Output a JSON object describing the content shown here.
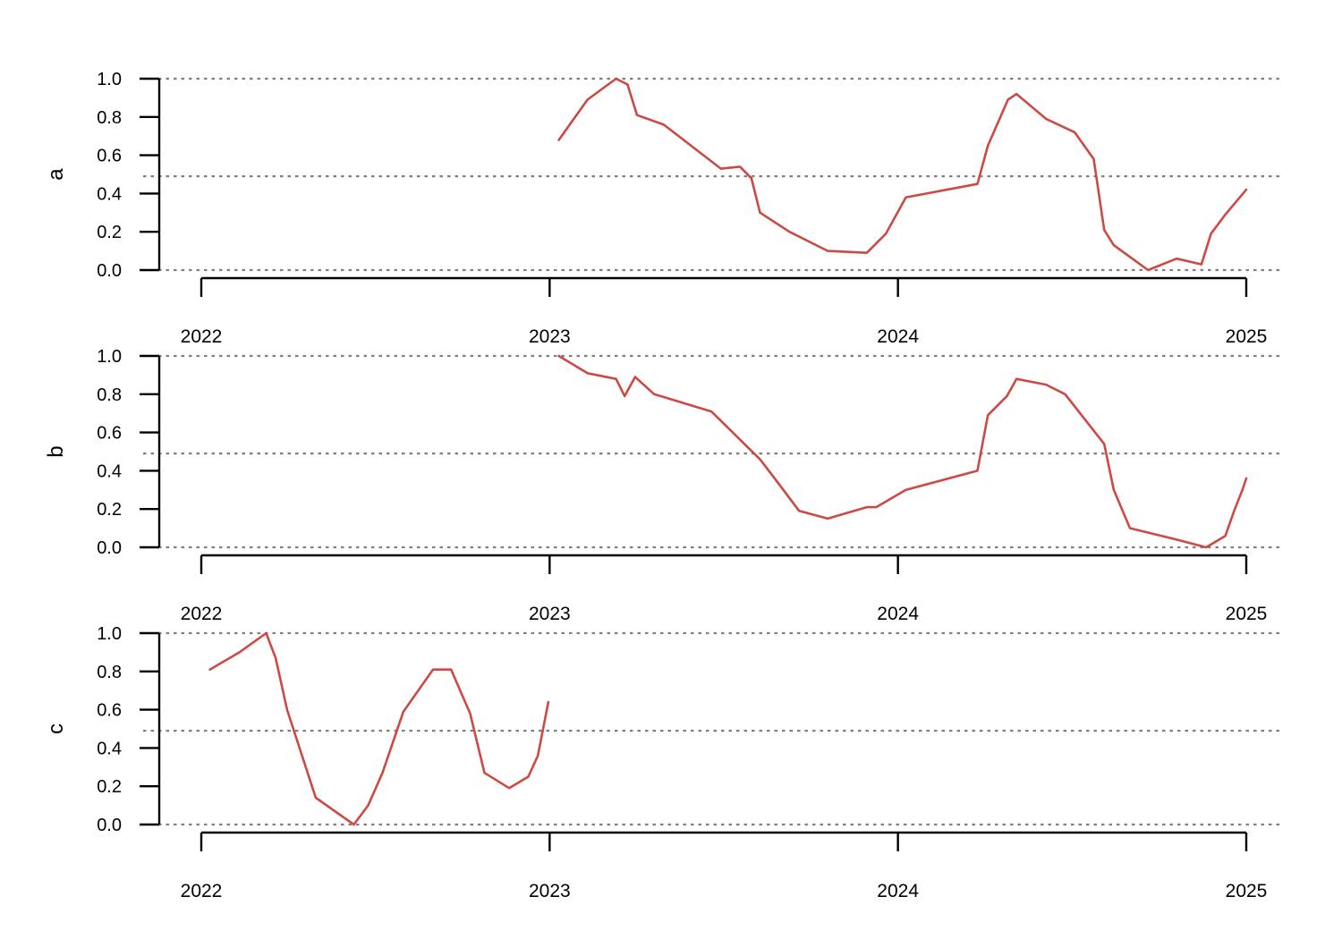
{
  "colors": {
    "line": "#cc4a43",
    "reference": "#808080",
    "axis": "#000000"
  },
  "chart_data": [
    {
      "type": "line",
      "ylabel": "a",
      "xlim": [
        "2022-01-01",
        "2025-01-01"
      ],
      "ylim": [
        0,
        1
      ],
      "yticks": [
        "0.0",
        "0.2",
        "0.4",
        "0.6",
        "0.8",
        "1.0"
      ],
      "xticks": [
        "2022",
        "2023",
        "2024",
        "2025"
      ],
      "reference_lines": [
        0,
        0.49,
        1
      ],
      "series": [
        {
          "x": [
            "2023-01-11",
            "2023-02-10",
            "2023-03-12",
            "2023-03-24",
            "2023-04-03",
            "2023-05-01",
            "2023-06-30",
            "2023-07-20",
            "2023-08-01",
            "2023-08-10",
            "2023-09-10",
            "2023-10-20",
            "2023-11-30",
            "2023-12-20",
            "2024-01-10",
            "2024-03-25",
            "2024-04-05",
            "2024-04-26",
            "2024-05-05",
            "2024-06-05",
            "2024-07-05",
            "2024-07-25",
            "2024-08-05",
            "2024-08-15",
            "2024-09-20",
            "2024-10-20",
            "2024-11-15",
            "2024-11-25",
            "2024-12-10",
            "2025-01-01"
          ],
          "y": [
            0.68,
            0.89,
            1.0,
            0.97,
            0.81,
            0.76,
            0.53,
            0.54,
            0.48,
            0.3,
            0.2,
            0.1,
            0.09,
            0.19,
            0.38,
            0.45,
            0.65,
            0.89,
            0.92,
            0.79,
            0.72,
            0.58,
            0.21,
            0.13,
            0.0,
            0.06,
            0.03,
            0.19,
            0.29,
            0.42
          ]
        }
      ]
    },
    {
      "type": "line",
      "ylabel": "b",
      "xlim": [
        "2022-01-01",
        "2025-01-01"
      ],
      "ylim": [
        0,
        1
      ],
      "yticks": [
        "0.0",
        "0.2",
        "0.4",
        "0.6",
        "0.8",
        "1.0"
      ],
      "xticks": [
        "2022",
        "2023",
        "2024",
        "2025"
      ],
      "reference_lines": [
        0,
        0.49,
        1
      ],
      "series": [
        {
          "x": [
            "2023-01-11",
            "2023-02-10",
            "2023-03-12",
            "2023-03-21",
            "2023-04-01",
            "2023-04-21",
            "2023-06-20",
            "2023-08-10",
            "2023-08-30",
            "2023-09-20",
            "2023-10-20",
            "2023-11-30",
            "2023-12-10",
            "2024-01-10",
            "2024-03-25",
            "2024-04-05",
            "2024-04-25",
            "2024-05-05",
            "2024-06-05",
            "2024-06-25",
            "2024-08-05",
            "2024-08-15",
            "2024-09-01",
            "2024-10-20",
            "2024-11-20",
            "2024-12-10",
            "2024-12-20",
            "2024-12-28",
            "2025-01-01"
          ],
          "y": [
            1.0,
            0.91,
            0.88,
            0.79,
            0.89,
            0.8,
            0.71,
            0.46,
            0.33,
            0.19,
            0.15,
            0.21,
            0.21,
            0.3,
            0.4,
            0.69,
            0.79,
            0.88,
            0.85,
            0.8,
            0.54,
            0.3,
            0.1,
            0.04,
            0.0,
            0.06,
            0.2,
            0.3,
            0.36
          ]
        }
      ]
    },
    {
      "type": "line",
      "ylabel": "c",
      "xlim": [
        "2022-01-01",
        "2025-01-01"
      ],
      "ylim": [
        0,
        1
      ],
      "yticks": [
        "0.0",
        "0.2",
        "0.4",
        "0.6",
        "0.8",
        "1.0"
      ],
      "xticks": [
        "2022",
        "2023",
        "2024",
        "2025"
      ],
      "reference_lines": [
        0,
        0.49,
        1
      ],
      "series": [
        {
          "x": [
            "2022-01-10",
            "2022-02-10",
            "2022-03-10",
            "2022-03-20",
            "2022-04-01",
            "2022-05-01",
            "2022-06-10",
            "2022-06-25",
            "2022-07-10",
            "2022-08-01",
            "2022-09-01",
            "2022-09-20",
            "2022-10-10",
            "2022-10-25",
            "2022-11-20",
            "2022-12-10",
            "2022-12-20",
            "2022-12-31"
          ],
          "y": [
            0.81,
            0.9,
            1.0,
            0.87,
            0.6,
            0.14,
            0.0,
            0.1,
            0.27,
            0.59,
            0.81,
            0.81,
            0.58,
            0.27,
            0.19,
            0.25,
            0.36,
            0.64
          ]
        }
      ]
    }
  ]
}
